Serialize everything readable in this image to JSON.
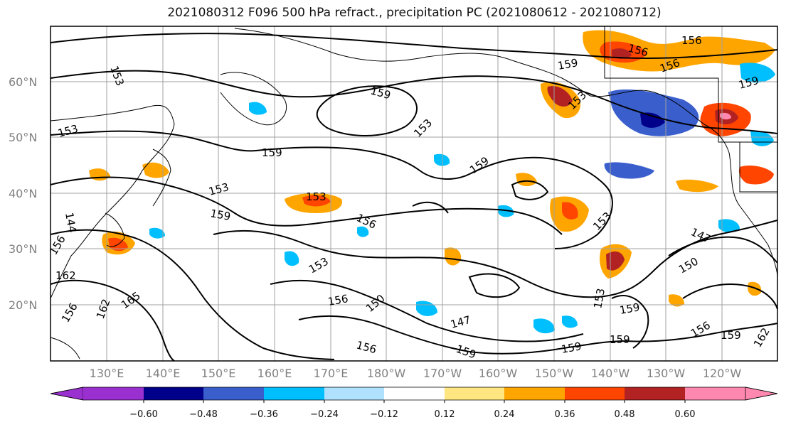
{
  "title": "2021080312 F096 500 hPa refract., precipitation PC (2021080612 - 2021080712)",
  "lat_labels": [
    "60°N",
    "50°N",
    "40°N",
    "30°N",
    "20°N"
  ],
  "lon_labels": [
    "130°E",
    "140°E",
    "150°E",
    "160°E",
    "170°E",
    "180°W",
    "170°W",
    "160°W",
    "150°W",
    "140°W",
    "130°W",
    "120°W"
  ],
  "contour_labels": [
    "153",
    "159",
    "156",
    "156",
    "156",
    "153",
    "159",
    "153",
    "159",
    "159",
    "153",
    "153",
    "159",
    "153",
    "153",
    "159",
    "156",
    "147",
    "153",
    "150",
    "156",
    "147",
    "156",
    "159",
    "159",
    "153",
    "159",
    "159",
    "150",
    "156",
    "159",
    "162",
    "162",
    "165",
    "156",
    "162",
    "144",
    "156"
  ],
  "colorbar": {
    "ticks": [
      "−0.60",
      "−0.48",
      "−0.36",
      "−0.24",
      "−0.12",
      "0.12",
      "0.24",
      "0.36",
      "0.48",
      "0.60"
    ],
    "colors": [
      "#9b30d0",
      "#00008b",
      "#3a5fcd",
      "#00bfff",
      "#b0e2ff",
      "#ffffff",
      "#ffe680",
      "#ffa500",
      "#ff4500",
      "#b22222",
      "#ff88b0"
    ]
  },
  "field_colors": {
    "contour": "#000000",
    "coast": "#000000",
    "grid": "#a0a0a0"
  }
}
